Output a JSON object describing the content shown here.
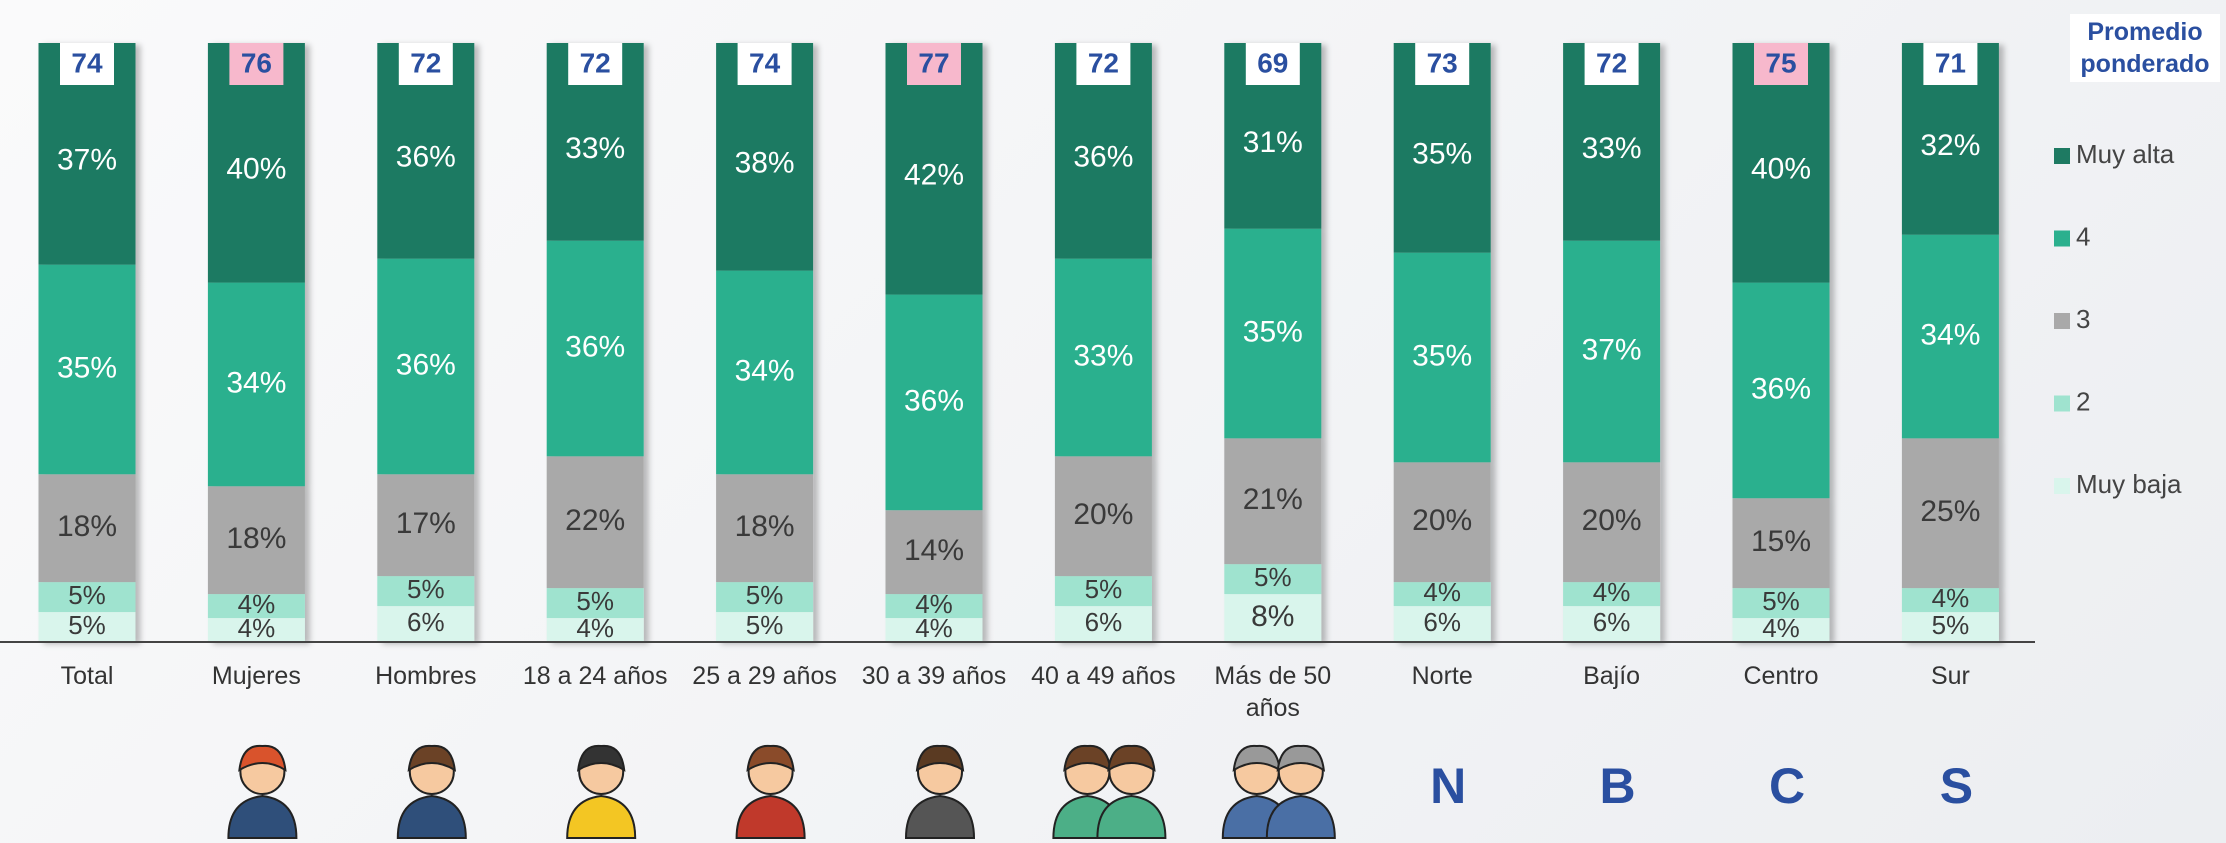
{
  "chart_data": {
    "type": "stacked_bar",
    "categories": [
      "Total",
      "Mujeres",
      "Hombres",
      "18 a 24 años",
      "25 a 29 años",
      "30 a 39 años",
      "40 a 49 años",
      "Más de 50 años",
      "Norte",
      "Bajío",
      "Centro",
      "Sur"
    ],
    "ylim": [
      0,
      100
    ],
    "series": [
      {
        "name": "Muy alta",
        "color": "#1e7a62",
        "label_color": "#ffffff",
        "values": [
          37,
          40,
          36,
          33,
          38,
          42,
          36,
          31,
          35,
          33,
          40,
          32
        ],
        "value_labels": [
          "37%",
          "40%",
          "36%",
          "33%",
          "38%",
          "42%",
          "36%",
          "31%",
          "35%",
          "33%",
          "40%",
          "32%"
        ]
      },
      {
        "name": "4",
        "color": "#2bb08e",
        "label_color": "#ffffff",
        "values": [
          35,
          34,
          36,
          36,
          34,
          36,
          33,
          35,
          35,
          37,
          36,
          34
        ],
        "value_labels": [
          "35%",
          "34%",
          "36%",
          "36%",
          "34%",
          "36%",
          "33%",
          "35%",
          "35%",
          "37%",
          "36%",
          "34%"
        ]
      },
      {
        "name": "3",
        "color": "#a9a9a9",
        "label_color": "#3a3a3a",
        "values": [
          18,
          18,
          17,
          22,
          18,
          14,
          20,
          21,
          20,
          20,
          15,
          25
        ],
        "value_labels": [
          "18%",
          "18%",
          "17%",
          "22%",
          "18%",
          "14%",
          "20%",
          "21%",
          "20%",
          "20%",
          "15%",
          "25%"
        ]
      },
      {
        "name": "2",
        "color": "#9fe3cf",
        "label_color": "#3a3a3a",
        "values": [
          5,
          4,
          5,
          5,
          5,
          4,
          5,
          5,
          4,
          4,
          5,
          4
        ],
        "value_labels": [
          "5%",
          "4%",
          "5%",
          "5%",
          "5%",
          "4%",
          "5%",
          "5%",
          "4%",
          "4%",
          "5%",
          "4%"
        ]
      },
      {
        "name": "Muy baja",
        "color": "#d9f5ec",
        "label_color": "#3a3a3a",
        "values": [
          5,
          4,
          6,
          4,
          5,
          4,
          6,
          8,
          6,
          6,
          4,
          5
        ],
        "value_labels": [
          "5%",
          "4%",
          "6%",
          "4%",
          "5%",
          "4%",
          "6%",
          "8%",
          "6%",
          "6%",
          "4%",
          "5%"
        ]
      }
    ],
    "weighted_average": {
      "title": "Promedio ponderado",
      "values": [
        74,
        76,
        72,
        72,
        74,
        77,
        72,
        69,
        73,
        72,
        75,
        71
      ],
      "colors": [
        "#ffffff",
        "#f7b8cc",
        "#ffffff",
        "#ffffff",
        "#ffffff",
        "#f7b8cc",
        "#ffffff",
        "#ffffff",
        "#ffffff",
        "#ffffff",
        "#f7b8cc",
        "#ffffff"
      ]
    },
    "region_letters": [
      null,
      null,
      null,
      null,
      null,
      null,
      null,
      null,
      "N",
      "B",
      "C",
      "S"
    ]
  }
}
